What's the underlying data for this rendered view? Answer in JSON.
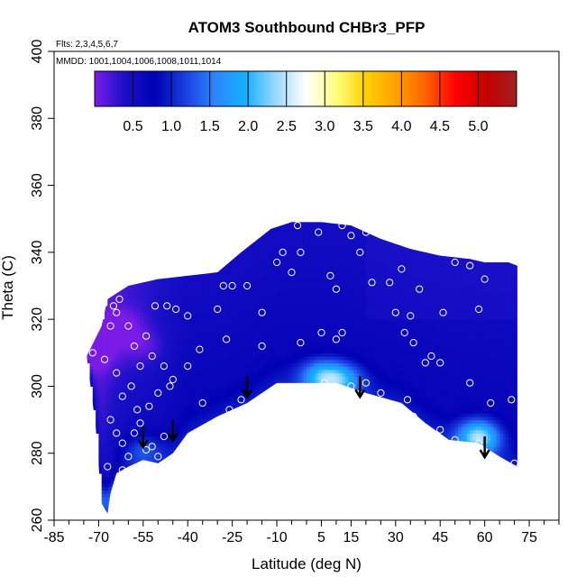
{
  "chart_data": {
    "type": "heatmap",
    "title": "ATOM3 Southbound CHBr3_PFP",
    "subtitle_flights": "Flts: 2,3,4,5,6,7",
    "subtitle_dates": "MMDD: 1001,1004,1006,1008,1011,1014",
    "xlabel": "Latitude (deg N)",
    "ylabel": "Theta (C)",
    "xlim": [
      -85,
      85
    ],
    "ylim": [
      260,
      400
    ],
    "x_ticks": [
      -85,
      -70,
      -55,
      -40,
      -25,
      -10,
      5,
      15,
      30,
      45,
      60,
      75
    ],
    "y_ticks": [
      260,
      280,
      300,
      320,
      340,
      360,
      380,
      400
    ],
    "colorbar": {
      "range": [
        0,
        5.5
      ],
      "ticks": [
        0.5,
        1.0,
        1.5,
        2.0,
        2.5,
        3.0,
        3.5,
        4.0,
        4.5,
        5.0
      ],
      "tick_labels": [
        "0.5",
        "1.0",
        "1.5",
        "2.0",
        "2.5",
        "3.0",
        "3.5",
        "4.0",
        "4.5",
        "5.0"
      ],
      "colors": [
        "#7a1be8",
        "#1a10c8",
        "#0000b4",
        "#1a3ee0",
        "#2a86ff",
        "#14b0ff",
        "#9ad8ff",
        "#ffffff",
        "#ffff80",
        "#ffd000",
        "#ffa000",
        "#ff6000",
        "#ff0000",
        "#c40000",
        "#a02020"
      ]
    },
    "upper_boundary": [
      [
        -74,
        309
      ],
      [
        -69,
        318
      ],
      [
        -67,
        326
      ],
      [
        -60,
        330
      ],
      [
        -50,
        332
      ],
      [
        -40,
        333
      ],
      [
        -30,
        334
      ],
      [
        -22,
        340
      ],
      [
        -12,
        347
      ],
      [
        -5,
        349
      ],
      [
        5,
        349
      ],
      [
        15,
        348
      ],
      [
        25,
        344
      ],
      [
        35,
        341
      ],
      [
        45,
        339
      ],
      [
        55,
        338
      ],
      [
        60,
        337
      ],
      [
        68,
        337
      ],
      [
        71,
        336
      ]
    ],
    "lower_boundary": [
      [
        -74,
        309
      ],
      [
        -71,
        288
      ],
      [
        -69,
        265
      ],
      [
        -67,
        262
      ],
      [
        -66,
        268
      ],
      [
        -64,
        274
      ],
      [
        -60,
        276
      ],
      [
        -55,
        278
      ],
      [
        -50,
        277
      ],
      [
        -45,
        280
      ],
      [
        -40,
        286
      ],
      [
        -30,
        291
      ],
      [
        -20,
        295
      ],
      [
        -10,
        301
      ],
      [
        0,
        301
      ],
      [
        10,
        301
      ],
      [
        20,
        298
      ],
      [
        32,
        295
      ],
      [
        40,
        289
      ],
      [
        48,
        284
      ],
      [
        58,
        283
      ],
      [
        65,
        279
      ],
      [
        71,
        276
      ]
    ],
    "hotspots": [
      {
        "lat": 58,
        "theta": 285,
        "value": 2.3
      },
      {
        "lat": 5,
        "theta": 303,
        "value": 1.8
      },
      {
        "lat": 12,
        "theta": 302,
        "value": 1.7
      },
      {
        "lat": -55,
        "theta": 281,
        "value": 1.2
      },
      {
        "lat": -68,
        "theta": 266,
        "value": 1.3
      },
      {
        "lat": -71,
        "theta": 310,
        "value": 0.3
      },
      {
        "lat": -62,
        "theta": 318,
        "value": 0.3
      },
      {
        "lat": -55,
        "theta": 312,
        "value": 0.4
      }
    ],
    "samples": [
      [
        -72,
        310
      ],
      [
        -68,
        308
      ],
      [
        -66,
        318
      ],
      [
        -65,
        324
      ],
      [
        -63,
        326
      ],
      [
        -64,
        322
      ],
      [
        -60,
        318
      ],
      [
        -58,
        312
      ],
      [
        -56,
        306
      ],
      [
        -59,
        300
      ],
      [
        -62,
        297
      ],
      [
        -64,
        304
      ],
      [
        -66,
        290
      ],
      [
        -64,
        286
      ],
      [
        -62,
        283
      ],
      [
        -67,
        276
      ],
      [
        -62,
        275
      ],
      [
        -60,
        279
      ],
      [
        -58,
        286
      ],
      [
        -56,
        289
      ],
      [
        -57,
        293
      ],
      [
        -54,
        281
      ],
      [
        -52,
        282
      ],
      [
        -50,
        279
      ],
      [
        -48,
        285
      ],
      [
        -53,
        294
      ],
      [
        -50,
        298
      ],
      [
        -46,
        300
      ],
      [
        -48,
        306
      ],
      [
        -45,
        302
      ],
      [
        -52,
        309
      ],
      [
        -54,
        315
      ],
      [
        -51,
        324
      ],
      [
        -47,
        324
      ],
      [
        -44,
        323
      ],
      [
        -40,
        321
      ],
      [
        -36,
        311
      ],
      [
        -40,
        306
      ],
      [
        -35,
        295
      ],
      [
        -30,
        288
      ],
      [
        -26,
        293
      ],
      [
        -22,
        296
      ],
      [
        -27,
        314
      ],
      [
        -30,
        323
      ],
      [
        -25,
        330
      ],
      [
        -20,
        330
      ],
      [
        -15,
        322
      ],
      [
        -15,
        312
      ],
      [
        -8,
        340
      ],
      [
        -2,
        340
      ],
      [
        -3,
        348
      ],
      [
        4,
        346
      ],
      [
        12,
        348
      ],
      [
        15,
        345
      ],
      [
        10,
        329
      ],
      [
        -2,
        313
      ],
      [
        5,
        316
      ],
      [
        10,
        314
      ],
      [
        12,
        316
      ],
      [
        6,
        301
      ],
      [
        15,
        300
      ],
      [
        20,
        301
      ],
      [
        22,
        331
      ],
      [
        28,
        331
      ],
      [
        32,
        335
      ],
      [
        38,
        329
      ],
      [
        35,
        321
      ],
      [
        36,
        313
      ],
      [
        40,
        307
      ],
      [
        42,
        309
      ],
      [
        30,
        322
      ],
      [
        33,
        316
      ],
      [
        46,
        322
      ],
      [
        45,
        307
      ],
      [
        50,
        337
      ],
      [
        55,
        336
      ],
      [
        60,
        332
      ],
      [
        58,
        323
      ],
      [
        55,
        301
      ],
      [
        62,
        295
      ],
      [
        69,
        296
      ],
      [
        70,
        277
      ],
      [
        58,
        283
      ],
      [
        50,
        284
      ],
      [
        45,
        287
      ],
      [
        36,
        291
      ],
      [
        34,
        296
      ],
      [
        25,
        298
      ],
      [
        -10,
        337
      ],
      [
        -5,
        334
      ],
      [
        -20,
        347
      ],
      [
        -28,
        330
      ],
      [
        18,
        340
      ],
      [
        20,
        346
      ],
      [
        8,
        333
      ]
    ],
    "arrows": [
      [
        -55,
        288
      ],
      [
        -45,
        290
      ],
      [
        -20,
        303
      ],
      [
        18,
        303
      ],
      [
        60,
        285
      ]
    ]
  }
}
